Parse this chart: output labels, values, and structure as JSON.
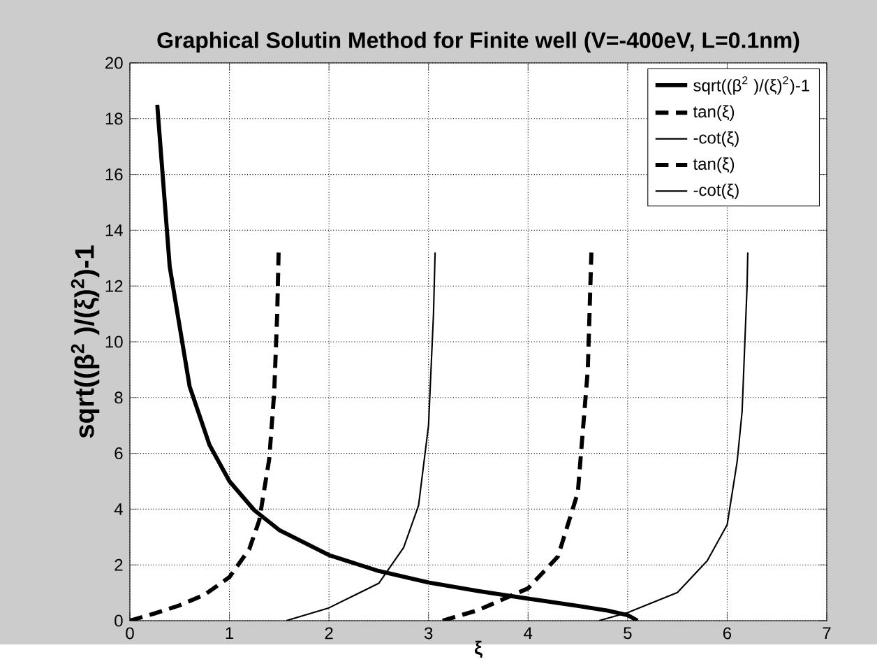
{
  "chart_data": {
    "type": "line",
    "title": "Graphical Solutin Method for Finite well (V=-400eV, L=0.1nm)",
    "xlabel": "ξ",
    "ylabel": "sqrt((β$^{2}$ )/(ξ)$^{2}$)-1",
    "xlim": [
      0,
      7
    ],
    "ylim": [
      0,
      20
    ],
    "xticks": [
      0,
      1,
      2,
      3,
      4,
      5,
      6,
      7
    ],
    "yticks": [
      0,
      2,
      4,
      6,
      8,
      10,
      12,
      14,
      16,
      18,
      20
    ],
    "grid": true,
    "legend": "top right",
    "series": [
      {
        "name": "sqrt((β$^{2}$ )/(ξ)$^{2}$)-1",
        "color": "#000000",
        "line_style": "solid",
        "x": [
          0.275,
          0.4,
          0.6,
          0.8,
          1.0,
          1.25,
          1.5,
          2.0,
          2.5,
          3.0,
          3.5,
          4.0,
          4.5,
          4.8,
          5.0,
          5.1
        ],
        "values": [
          18.5,
          12.7,
          8.4,
          6.3,
          5.0,
          3.96,
          3.25,
          2.35,
          1.78,
          1.37,
          1.06,
          0.79,
          0.53,
          0.36,
          0.2,
          0
        ]
      },
      {
        "name": "tan(ξ)",
        "color": "#000000",
        "line_style": "dashed",
        "x": [
          0,
          0.25,
          0.5,
          0.75,
          1.0,
          1.2,
          1.3,
          1.4,
          1.45,
          1.48,
          1.494
        ],
        "values": [
          0,
          0.26,
          0.55,
          0.93,
          1.56,
          2.57,
          3.6,
          5.8,
          8.2,
          11.0,
          13.2
        ]
      },
      {
        "name": "-cot(ξ)",
        "color": "#000000",
        "line_style": "solid",
        "x": [
          1.571,
          2.0,
          2.5,
          2.75,
          2.9,
          3.0,
          3.05,
          3.066
        ],
        "values": [
          0,
          0.46,
          1.34,
          2.62,
          4.13,
          7.0,
          11.0,
          13.2
        ]
      },
      {
        "name": "tan(ξ)",
        "color": "#000000",
        "line_style": "dashed",
        "x": [
          3.142,
          3.5,
          4.0,
          4.3,
          4.5,
          4.6,
          4.636
        ],
        "values": [
          0,
          0.38,
          1.16,
          2.3,
          4.6,
          9.0,
          13.2
        ]
      },
      {
        "name": "-cot(ξ)",
        "color": "#000000",
        "line_style": "solid",
        "x": [
          4.712,
          5.0,
          5.5,
          5.8,
          6.0,
          6.1,
          6.15,
          6.2,
          6.207
        ],
        "values": [
          0,
          0.29,
          1.01,
          2.15,
          3.44,
          5.7,
          7.5,
          12.0,
          13.2
        ]
      }
    ]
  }
}
